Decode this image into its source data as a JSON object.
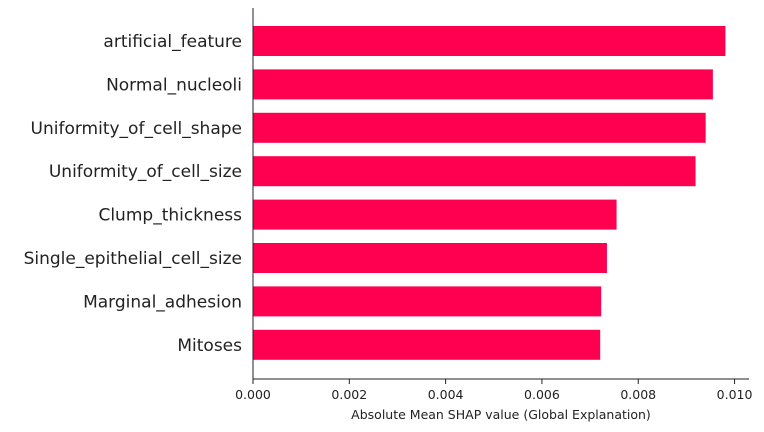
{
  "chart_data": {
    "type": "bar",
    "orientation": "horizontal",
    "title": "",
    "xlabel": "Absolute Mean SHAP value (Global Explanation)",
    "ylabel": "",
    "categories": [
      "artificial_feature",
      "Normal_nucleoli",
      "Uniformity_of_cell_shape",
      "Uniformity_of_cell_size",
      "Clump_thickness",
      "Single_epithelial_cell_size",
      "Marginal_adhesion",
      "Mitoses"
    ],
    "values": [
      0.00981,
      0.00955,
      0.0094,
      0.00919,
      0.00755,
      0.00735,
      0.00723,
      0.00721
    ],
    "xlim": [
      0,
      0.0103
    ],
    "xticks": [
      0.0,
      0.002,
      0.004,
      0.006,
      0.008,
      0.01
    ],
    "xtick_labels": [
      "0.000",
      "0.002",
      "0.004",
      "0.006",
      "0.008",
      "0.010"
    ],
    "bar_color": "#ff0051",
    "grid": false,
    "legend": "none"
  }
}
